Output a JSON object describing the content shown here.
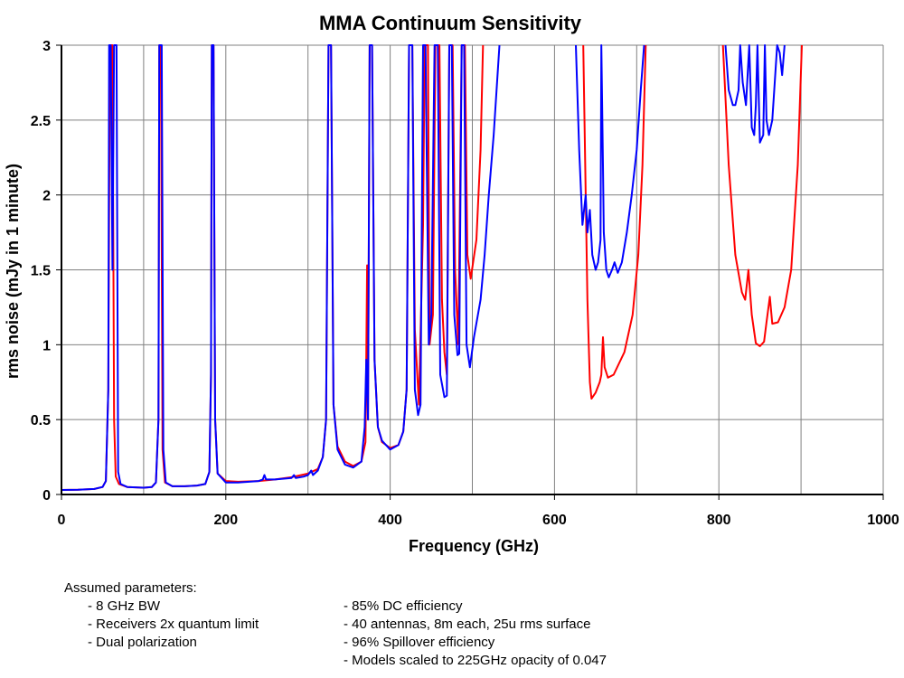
{
  "chart_data": {
    "type": "line",
    "title": "MMA Continuum Sensitivity",
    "xlabel": "Frequency (GHz)",
    "ylabel": "rms noise (mJy in 1 minute)",
    "xlim": [
      0,
      1000
    ],
    "ylim": [
      0,
      3
    ],
    "xticks": [
      0,
      200,
      400,
      600,
      800,
      1000
    ],
    "xtick_labels": [
      "0",
      "200",
      "400",
      "600",
      "800",
      "1000"
    ],
    "yticks": [
      0,
      0.5,
      1,
      1.5,
      2,
      2.5,
      3
    ],
    "ytick_labels": [
      "0",
      "0.5",
      "1",
      "1.5",
      "2",
      "2.5",
      "3"
    ],
    "grid": true,
    "series": [
      {
        "color": "#ff0000",
        "segments": [
          [
            [
              0,
              0.03
            ],
            [
              20,
              0.032
            ],
            [
              40,
              0.037
            ],
            [
              50,
              0.05
            ],
            [
              54,
              0.09
            ],
            [
              57,
              0.7
            ],
            [
              59,
              3
            ],
            [
              62,
              3
            ],
            [
              64,
              0.5
            ],
            [
              66,
              0.12
            ],
            [
              70,
              0.07
            ],
            [
              80,
              0.05
            ],
            [
              100,
              0.045
            ],
            [
              110,
              0.05
            ],
            [
              115,
              0.08
            ],
            [
              118,
              0.5
            ],
            [
              119,
              3
            ],
            [
              121,
              3
            ],
            [
              123,
              0.3
            ],
            [
              126,
              0.08
            ],
            [
              135,
              0.055
            ],
            [
              150,
              0.055
            ],
            [
              165,
              0.06
            ],
            [
              175,
              0.07
            ],
            [
              180,
              0.15
            ],
            [
              182,
              0.8
            ],
            [
              183,
              3
            ],
            [
              185,
              3
            ],
            [
              187,
              0.5
            ],
            [
              190,
              0.14
            ],
            [
              200,
              0.09
            ],
            [
              215,
              0.085
            ],
            [
              240,
              0.09
            ],
            [
              260,
              0.1
            ],
            [
              280,
              0.115
            ],
            [
              300,
              0.14
            ],
            [
              312,
              0.17
            ],
            [
              318,
              0.25
            ],
            [
              322,
              0.5
            ],
            [
              325,
              3
            ],
            [
              328,
              3
            ],
            [
              331,
              0.6
            ],
            [
              336,
              0.32
            ],
            [
              345,
              0.22
            ],
            [
              355,
              0.19
            ],
            [
              365,
              0.22
            ],
            [
              370,
              0.35
            ],
            [
              372,
              1.53
            ],
            [
              373,
              0.5
            ],
            [
              375,
              3
            ],
            [
              378,
              3
            ],
            [
              381,
              0.9
            ],
            [
              385,
              0.45
            ],
            [
              390,
              0.35
            ],
            [
              400,
              0.31
            ],
            [
              410,
              0.33
            ],
            [
              416,
              0.42
            ],
            [
              420,
              0.7
            ],
            [
              423,
              3
            ],
            [
              427,
              3
            ],
            [
              430,
              1.1
            ],
            [
              435,
              0.6
            ],
            [
              440,
              1.8
            ],
            [
              442,
              3
            ],
            [
              446,
              3
            ],
            [
              448,
              1.0
            ],
            [
              452,
              1.2
            ],
            [
              455,
              3
            ],
            [
              460,
              3
            ],
            [
              463,
              1.3
            ],
            [
              466,
              0.95
            ],
            [
              469,
              0.8
            ],
            [
              472,
              3
            ],
            [
              476,
              3
            ],
            [
              479,
              1.5
            ],
            [
              483,
              1.0
            ],
            [
              487,
              3
            ],
            [
              491,
              3
            ],
            [
              494,
              1.6
            ],
            [
              498,
              1.44
            ],
            [
              505,
              1.7
            ],
            [
              510,
              2.3
            ],
            [
              513,
              3
            ]
          ],
          [
            [
              635,
              3
            ],
            [
              640,
              1.3
            ],
            [
              643,
              0.75
            ],
            [
              645,
              0.64
            ],
            [
              650,
              0.68
            ],
            [
              655,
              0.75
            ],
            [
              657,
              0.8
            ],
            [
              659,
              1.05
            ],
            [
              661,
              0.85
            ],
            [
              665,
              0.78
            ],
            [
              672,
              0.8
            ],
            [
              685,
              0.95
            ],
            [
              695,
              1.2
            ],
            [
              702,
              1.6
            ],
            [
              707,
              2.2
            ],
            [
              711,
              3
            ]
          ],
          [
            [
              805,
              3
            ],
            [
              812,
              2.2
            ],
            [
              820,
              1.6
            ],
            [
              828,
              1.35
            ],
            [
              832,
              1.3
            ],
            [
              836,
              1.5
            ],
            [
              840,
              1.2
            ],
            [
              845,
              1.01
            ],
            [
              850,
              0.99
            ],
            [
              855,
              1.02
            ],
            [
              858,
              1.15
            ],
            [
              862,
              1.32
            ],
            [
              865,
              1.14
            ],
            [
              872,
              1.15
            ],
            [
              880,
              1.25
            ],
            [
              888,
              1.5
            ],
            [
              896,
              2.2
            ],
            [
              901,
              3
            ]
          ]
        ]
      },
      {
        "color": "#0000ff",
        "segments": [
          [
            [
              0,
              0.03
            ],
            [
              20,
              0.032
            ],
            [
              40,
              0.037
            ],
            [
              50,
              0.05
            ],
            [
              54,
              0.09
            ],
            [
              57,
              0.7
            ],
            [
              58,
              3
            ],
            [
              60,
              3
            ],
            [
              62,
              1.5
            ],
            [
              64,
              3
            ],
            [
              67,
              3
            ],
            [
              69,
              0.15
            ],
            [
              72,
              0.07
            ],
            [
              80,
              0.05
            ],
            [
              100,
              0.045
            ],
            [
              110,
              0.05
            ],
            [
              115,
              0.08
            ],
            [
              118,
              0.5
            ],
            [
              119,
              3
            ],
            [
              122,
              3
            ],
            [
              124,
              0.3
            ],
            [
              127,
              0.08
            ],
            [
              135,
              0.055
            ],
            [
              150,
              0.055
            ],
            [
              165,
              0.06
            ],
            [
              175,
              0.07
            ],
            [
              180,
              0.15
            ],
            [
              182,
              0.8
            ],
            [
              183,
              3
            ],
            [
              185,
              3
            ],
            [
              187,
              0.5
            ],
            [
              190,
              0.14
            ],
            [
              200,
              0.08
            ],
            [
              215,
              0.08
            ],
            [
              240,
              0.09
            ],
            [
              245,
              0.1
            ],
            [
              247,
              0.13
            ],
            [
              249,
              0.1
            ],
            [
              260,
              0.1
            ],
            [
              280,
              0.11
            ],
            [
              283,
              0.13
            ],
            [
              285,
              0.11
            ],
            [
              295,
              0.12
            ],
            [
              300,
              0.13
            ],
            [
              304,
              0.16
            ],
            [
              306,
              0.13
            ],
            [
              312,
              0.16
            ],
            [
              318,
              0.25
            ],
            [
              322,
              0.5
            ],
            [
              325,
              3
            ],
            [
              328,
              3
            ],
            [
              331,
              0.6
            ],
            [
              336,
              0.3
            ],
            [
              345,
              0.2
            ],
            [
              355,
              0.18
            ],
            [
              365,
              0.22
            ],
            [
              369,
              0.45
            ],
            [
              371,
              0.9
            ],
            [
              373,
              0.5
            ],
            [
              375,
              3
            ],
            [
              378,
              3
            ],
            [
              381,
              0.9
            ],
            [
              385,
              0.45
            ],
            [
              390,
              0.36
            ],
            [
              400,
              0.3
            ],
            [
              410,
              0.33
            ],
            [
              416,
              0.42
            ],
            [
              420,
              0.7
            ],
            [
              423,
              3
            ],
            [
              427,
              3
            ],
            [
              430,
              0.7
            ],
            [
              434,
              0.53
            ],
            [
              437,
              0.6
            ],
            [
              440,
              3
            ],
            [
              443,
              3
            ],
            [
              447,
              1.0
            ],
            [
              450,
              1.2
            ],
            [
              454,
              3
            ],
            [
              458,
              3
            ],
            [
              461,
              0.8
            ],
            [
              466,
              0.65
            ],
            [
              469,
              0.66
            ],
            [
              472,
              3
            ],
            [
              475,
              3
            ],
            [
              478,
              1.2
            ],
            [
              482,
              0.93
            ],
            [
              484,
              0.94
            ],
            [
              487,
              3
            ],
            [
              490,
              3
            ],
            [
              493,
              1.0
            ],
            [
              497,
              0.85
            ],
            [
              502,
              1.05
            ],
            [
              510,
              1.3
            ],
            [
              515,
              1.6
            ],
            [
              520,
              2.0
            ],
            [
              526,
              2.4
            ],
            [
              533,
              3
            ]
          ],
          [
            [
              626,
              3
            ],
            [
              630,
              2.3
            ],
            [
              634,
              1.8
            ],
            [
              638,
              2.0
            ],
            [
              640,
              1.75
            ],
            [
              643,
              1.9
            ],
            [
              646,
              1.6
            ],
            [
              650,
              1.5
            ],
            [
              653,
              1.55
            ],
            [
              656,
              1.7
            ],
            [
              657,
              3
            ],
            [
              659,
              2.2
            ],
            [
              660,
              1.75
            ],
            [
              663,
              1.5
            ],
            [
              666,
              1.45
            ],
            [
              670,
              1.5
            ],
            [
              673,
              1.55
            ],
            [
              677,
              1.48
            ],
            [
              682,
              1.55
            ],
            [
              688,
              1.75
            ],
            [
              694,
              2.0
            ],
            [
              700,
              2.3
            ],
            [
              705,
              2.7
            ],
            [
              709,
              3
            ]
          ],
          [
            [
              808,
              3
            ],
            [
              812,
              2.7
            ],
            [
              817,
              2.6
            ],
            [
              820,
              2.6
            ],
            [
              824,
              2.7
            ],
            [
              826,
              3
            ],
            [
              829,
              2.75
            ],
            [
              833,
              2.6
            ],
            [
              837,
              3
            ],
            [
              840,
              2.45
            ],
            [
              843,
              2.4
            ],
            [
              845,
              2.6
            ],
            [
              847,
              3
            ],
            [
              850,
              2.35
            ],
            [
              854,
              2.4
            ],
            [
              856,
              3
            ],
            [
              858,
              2.5
            ],
            [
              861,
              2.4
            ],
            [
              865,
              2.5
            ],
            [
              868,
              2.75
            ],
            [
              871,
              3
            ],
            [
              874,
              2.95
            ],
            [
              877,
              2.8
            ],
            [
              880,
              3
            ]
          ]
        ]
      }
    ]
  },
  "notes": {
    "heading": "Assumed parameters:",
    "left": [
      "-  8 GHz BW",
      "-  Receivers 2x quantum limit",
      "-  Dual polarization"
    ],
    "right": [
      "-  85% DC efficiency",
      "-  40 antennas, 8m each, 25u rms surface",
      "-  96% Spillover efficiency",
      "-  Models scaled to 225GHz opacity of 0.047"
    ]
  }
}
